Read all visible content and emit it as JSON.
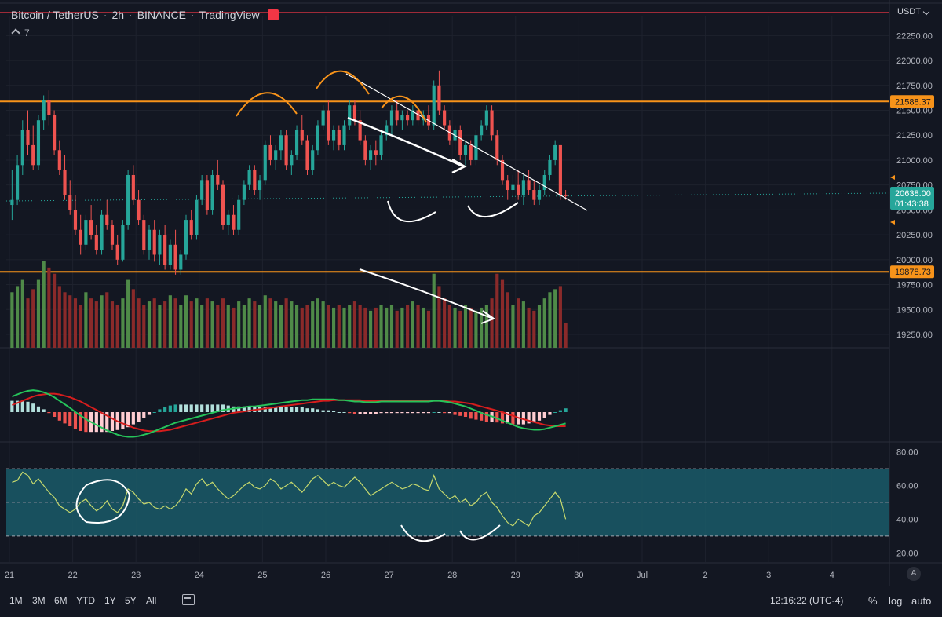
{
  "header": {
    "symbol": "Bitcoin / TetherUS",
    "interval": "2h",
    "exchange": "BINANCE",
    "publisher": "TradingView",
    "indicator_count": "7"
  },
  "price_axis": {
    "currency": "USDT",
    "ticks": [
      "22250.00",
      "22000.00",
      "21750.00",
      "21500.00",
      "21250.00",
      "21000.00",
      "20750.00",
      "20500.00",
      "20250.00",
      "20000.00",
      "19750.00",
      "19500.00",
      "19250.00"
    ],
    "tick_values": [
      22250,
      22000,
      21750,
      21500,
      21250,
      21000,
      20750,
      20500,
      20250,
      20000,
      19750,
      19500,
      19250
    ],
    "resistance_label": "21588.37",
    "support_label": "19878.73",
    "last_price_label": "20638.00",
    "countdown_label": "01:43:38"
  },
  "rsi_axis": {
    "ticks": [
      "80.00",
      "60.00",
      "40.00",
      "20.00"
    ],
    "tick_values": [
      80,
      60,
      40,
      20
    ]
  },
  "time_axis": {
    "labels": [
      "21",
      "22",
      "23",
      "24",
      "25",
      "26",
      "27",
      "28",
      "29",
      "30",
      "Jul",
      "2",
      "3",
      "4"
    ],
    "day_index": [
      0,
      1,
      2,
      3,
      4,
      5,
      6,
      7,
      8,
      9,
      10,
      11,
      12,
      13
    ]
  },
  "bottom_bar": {
    "timeframes": [
      "1M",
      "3M",
      "6M",
      "YTD",
      "1Y",
      "5Y",
      "All"
    ],
    "clock": "12:16:22 (UTC-4)",
    "percent": "%",
    "log": "log",
    "auto": "auto",
    "auto_badge": "A"
  },
  "colors": {
    "up": "#26a69a",
    "down": "#ef5350",
    "vol_up": "#4f8a48",
    "vol_down": "#8a2a2a",
    "level": "#f7931a",
    "macd": "#26c35a",
    "signal": "#d61d1d",
    "rsi": "#c5d86d",
    "rsi_band": "#1a5a68",
    "bg": "#131722",
    "grid": "#2a2e39",
    "annotation_white": "#ffffff",
    "annotation_orange": "#f7931a"
  },
  "chart_data": {
    "type": "candlestick",
    "title": "Bitcoin / TetherUS · 2h · BINANCE",
    "levels": [
      21588.37,
      19878.73
    ],
    "last_price": 20638.0,
    "price_ylim": [
      19100,
      22450
    ],
    "candles_per_day": 12,
    "candles_ohlc": [
      [
        20550,
        20900,
        20400,
        20600
      ],
      [
        20600,
        21050,
        20550,
        20950
      ],
      [
        20950,
        21400,
        20850,
        21300
      ],
      [
        21300,
        21500,
        21050,
        21150
      ],
      [
        21150,
        21350,
        20900,
        20950
      ],
      [
        20950,
        21450,
        20900,
        21400
      ],
      [
        21400,
        21650,
        21300,
        21600
      ],
      [
        21600,
        21700,
        21350,
        21450
      ],
      [
        21450,
        21500,
        21050,
        21100
      ],
      [
        21100,
        21200,
        20850,
        20900
      ],
      [
        20900,
        21050,
        20600,
        20650
      ],
      [
        20650,
        20800,
        20450,
        20500
      ],
      [
        20500,
        20650,
        20250,
        20300
      ],
      [
        20300,
        20450,
        20050,
        20150
      ],
      [
        20150,
        20450,
        20100,
        20400
      ],
      [
        20400,
        20550,
        20200,
        20250
      ],
      [
        20250,
        20350,
        20050,
        20100
      ],
      [
        20100,
        20500,
        20050,
        20450
      ],
      [
        20450,
        20600,
        20300,
        20350
      ],
      [
        20350,
        20400,
        20100,
        20150
      ],
      [
        20150,
        20250,
        19950,
        20000
      ],
      [
        20000,
        20400,
        19980,
        20350
      ],
      [
        20350,
        20900,
        20300,
        20850
      ],
      [
        20850,
        20950,
        20550,
        20600
      ],
      [
        20600,
        20700,
        20350,
        20400
      ],
      [
        20400,
        20450,
        20050,
        20100
      ],
      [
        20100,
        20350,
        20000,
        20300
      ],
      [
        20300,
        20400,
        19980,
        20050
      ],
      [
        20050,
        20300,
        19950,
        20250
      ],
      [
        20250,
        20350,
        19900,
        19950
      ],
      [
        19950,
        20200,
        19900,
        20150
      ],
      [
        20150,
        20300,
        19850,
        19900
      ],
      [
        19900,
        20100,
        19850,
        20050
      ],
      [
        20050,
        20450,
        20000,
        20400
      ],
      [
        20400,
        20500,
        20200,
        20250
      ],
      [
        20250,
        20650,
        20200,
        20600
      ],
      [
        20600,
        20850,
        20550,
        20800
      ],
      [
        20800,
        20850,
        20450,
        20500
      ],
      [
        20500,
        20900,
        20450,
        20850
      ],
      [
        20850,
        21000,
        20700,
        20750
      ],
      [
        20750,
        20800,
        20300,
        20350
      ],
      [
        20350,
        20500,
        20250,
        20450
      ],
      [
        20450,
        20550,
        20250,
        20300
      ],
      [
        20300,
        20650,
        20250,
        20600
      ],
      [
        20600,
        20800,
        20550,
        20750
      ],
      [
        20750,
        20950,
        20700,
        20900
      ],
      [
        20900,
        20950,
        20650,
        20700
      ],
      [
        20700,
        20850,
        20600,
        20800
      ],
      [
        20800,
        21200,
        20750,
        21150
      ],
      [
        21150,
        21250,
        20950,
        21000
      ],
      [
        21000,
        21150,
        20900,
        21100
      ],
      [
        21100,
        21300,
        21000,
        21250
      ],
      [
        21250,
        21300,
        20900,
        20950
      ],
      [
        20950,
        21100,
        20850,
        21050
      ],
      [
        21050,
        21350,
        21000,
        21300
      ],
      [
        21300,
        21450,
        21150,
        21200
      ],
      [
        21200,
        21250,
        20850,
        20900
      ],
      [
        20900,
        21150,
        20850,
        21100
      ],
      [
        21100,
        21400,
        21050,
        21350
      ],
      [
        21350,
        21550,
        21300,
        21500
      ],
      [
        21500,
        21600,
        21150,
        21200
      ],
      [
        21200,
        21350,
        21100,
        21300
      ],
      [
        21300,
        21350,
        21100,
        21150
      ],
      [
        21150,
        21400,
        21100,
        21350
      ],
      [
        21350,
        21600,
        21300,
        21550
      ],
      [
        21550,
        21600,
        21350,
        21400
      ],
      [
        21400,
        21500,
        21150,
        21200
      ],
      [
        21200,
        21250,
        20950,
        21000
      ],
      [
        21000,
        21150,
        20900,
        21100
      ],
      [
        21100,
        21200,
        20950,
        21050
      ],
      [
        21050,
        21300,
        21000,
        21250
      ],
      [
        21250,
        21400,
        21200,
        21350
      ],
      [
        21350,
        21550,
        21250,
        21500
      ],
      [
        21500,
        21600,
        21350,
        21400
      ],
      [
        21400,
        21500,
        21300,
        21450
      ],
      [
        21450,
        21500,
        21350,
        21400
      ],
      [
        21400,
        21550,
        21350,
        21500
      ],
      [
        21500,
        21550,
        21350,
        21400
      ],
      [
        21400,
        21500,
        21350,
        21450
      ],
      [
        21450,
        21550,
        21300,
        21350
      ],
      [
        21350,
        21800,
        21300,
        21750
      ],
      [
        21750,
        21900,
        21450,
        21500
      ],
      [
        21500,
        21550,
        21300,
        21350
      ],
      [
        21350,
        21400,
        21150,
        21200
      ],
      [
        21200,
        21350,
        21100,
        21300
      ],
      [
        21300,
        21350,
        21000,
        21050
      ],
      [
        21050,
        21200,
        20950,
        21150
      ],
      [
        21150,
        21200,
        20950,
        21000
      ],
      [
        21000,
        21300,
        20950,
        21250
      ],
      [
        21250,
        21400,
        21200,
        21350
      ],
      [
        21350,
        21550,
        21300,
        21500
      ],
      [
        21500,
        21550,
        21200,
        21250
      ],
      [
        21250,
        21300,
        20950,
        21000
      ],
      [
        21000,
        21050,
        20750,
        20800
      ],
      [
        20800,
        20850,
        20600,
        20700
      ],
      [
        20700,
        20850,
        20600,
        20750
      ],
      [
        20750,
        20900,
        20600,
        20650
      ],
      [
        20650,
        20850,
        20550,
        20800
      ],
      [
        20800,
        20900,
        20650,
        20700
      ],
      [
        20700,
        20800,
        20550,
        20600
      ],
      [
        20600,
        20750,
        20550,
        20700
      ],
      [
        20700,
        20900,
        20650,
        20850
      ],
      [
        20850,
        21050,
        20800,
        21000
      ],
      [
        21000,
        21200,
        20950,
        21150
      ],
      [
        21150,
        21150,
        20600,
        20650
      ],
      [
        20650,
        20700,
        20600,
        20638
      ]
    ],
    "volume": [
      90,
      100,
      110,
      80,
      95,
      110,
      140,
      130,
      120,
      100,
      90,
      85,
      80,
      70,
      90,
      80,
      75,
      85,
      90,
      75,
      70,
      80,
      110,
      95,
      80,
      70,
      75,
      80,
      70,
      75,
      85,
      80,
      70,
      85,
      75,
      80,
      70,
      80,
      75,
      70,
      80,
      70,
      65,
      75,
      70,
      80,
      75,
      70,
      85,
      80,
      75,
      70,
      80,
      75,
      70,
      65,
      70,
      75,
      80,
      75,
      70,
      65,
      70,
      65,
      70,
      75,
      70,
      65,
      60,
      65,
      70,
      65,
      70,
      60,
      65,
      70,
      75,
      70,
      65,
      60,
      120,
      100,
      80,
      70,
      65,
      60,
      70,
      65,
      60,
      65,
      70,
      80,
      120,
      110,
      90,
      70,
      80,
      75,
      65,
      60,
      70,
      80,
      90,
      95,
      100,
      40
    ],
    "macd": [
      62,
      65,
      68,
      70,
      71,
      70,
      68,
      65,
      61,
      56,
      51,
      46,
      40,
      35,
      30,
      26,
      22,
      18,
      14,
      11,
      8,
      6,
      5,
      5,
      6,
      8,
      10,
      13,
      16,
      19,
      22,
      25,
      27,
      29,
      31,
      33,
      35,
      37,
      39,
      41,
      43,
      44,
      45,
      46,
      47,
      48,
      48,
      49,
      50,
      51,
      52,
      53,
      54,
      55,
      56,
      57,
      57,
      58,
      58,
      58,
      58,
      58,
      57,
      57,
      56,
      55,
      55,
      54,
      54,
      54,
      55,
      55,
      55,
      55,
      55,
      55,
      55,
      55,
      55,
      55,
      56,
      56,
      55,
      54,
      52,
      50,
      48,
      45,
      42,
      39,
      36,
      34,
      31,
      28,
      25,
      22,
      19,
      17,
      16,
      15,
      15,
      16,
      18,
      20,
      22,
      24
    ],
    "signal": [
      50,
      53,
      56,
      59,
      62,
      64,
      65,
      66,
      66,
      65,
      63,
      61,
      58,
      55,
      51,
      47,
      43,
      39,
      35,
      31,
      27,
      24,
      21,
      18,
      16,
      14,
      13,
      13,
      13,
      14,
      15,
      17,
      19,
      21,
      23,
      25,
      27,
      29,
      31,
      33,
      35,
      37,
      39,
      40,
      41,
      42,
      43,
      44,
      45,
      46,
      47,
      48,
      49,
      50,
      51,
      52,
      53,
      54,
      55,
      56,
      56,
      57,
      57,
      57,
      57,
      57,
      57,
      56,
      56,
      56,
      56,
      56,
      56,
      56,
      56,
      56,
      56,
      56,
      56,
      56,
      56,
      56,
      56,
      55,
      55,
      54,
      53,
      52,
      50,
      48,
      46,
      44,
      42,
      40,
      37,
      35,
      32,
      30,
      28,
      26,
      24,
      22,
      21,
      20,
      20,
      20
    ],
    "rsi": [
      62,
      63,
      68,
      66,
      61,
      64,
      60,
      56,
      53,
      48,
      46,
      44,
      46,
      50,
      52,
      48,
      45,
      47,
      51,
      46,
      44,
      48,
      58,
      56,
      52,
      49,
      50,
      47,
      46,
      48,
      46,
      48,
      52,
      58,
      55,
      61,
      64,
      60,
      62,
      58,
      55,
      52,
      54,
      57,
      60,
      62,
      59,
      58,
      60,
      64,
      62,
      58,
      60,
      62,
      59,
      56,
      60,
      64,
      66,
      63,
      60,
      62,
      60,
      59,
      62,
      65,
      62,
      58,
      54,
      56,
      58,
      60,
      62,
      60,
      58,
      59,
      61,
      60,
      58,
      57,
      66,
      58,
      55,
      52,
      54,
      50,
      52,
      48,
      50,
      54,
      56,
      50,
      47,
      42,
      38,
      36,
      40,
      38,
      36,
      42,
      44,
      48,
      52,
      56,
      52,
      40
    ],
    "rsi_levels": [
      70,
      30
    ],
    "rsi_ylim": [
      15,
      85
    ]
  }
}
